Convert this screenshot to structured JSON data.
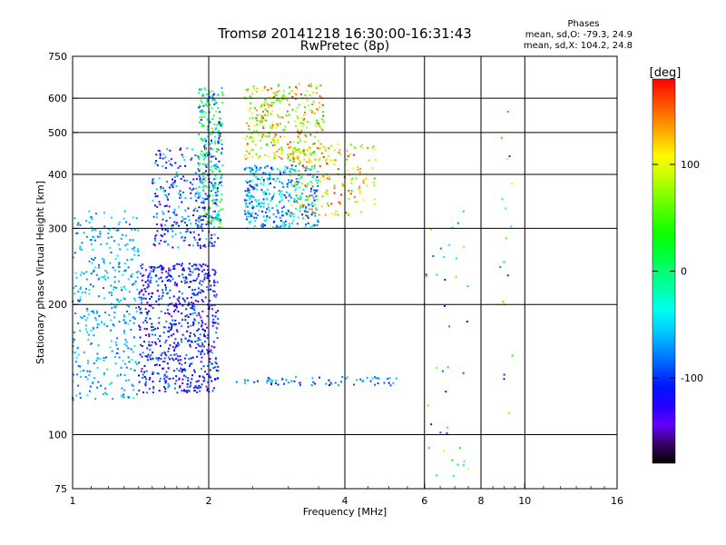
{
  "chart_data": {
    "type": "scatter",
    "title": "Tromsø 20141218 16:30:00-16:31:43",
    "subtitle": "RwPretec (8p)",
    "xlabel": "Frequency [MHz]",
    "ylabel": "Stationary phase Virtual Height [km]",
    "x_scale": "log",
    "y_scale": "log",
    "xlim": [
      1,
      16
    ],
    "ylim": [
      75,
      750
    ],
    "x_ticks": [
      1,
      2,
      4,
      6,
      8,
      10,
      16
    ],
    "x_tick_labels": [
      "1",
      "2",
      "4",
      "6",
      "8",
      "10",
      "16"
    ],
    "y_ticks": [
      75,
      100,
      200,
      300,
      400,
      500,
      600,
      750
    ],
    "y_tick_labels": [
      "75",
      "100",
      "200",
      "300",
      "400",
      "500",
      "600",
      "750"
    ],
    "grid": true,
    "stats": {
      "heading": "Phases",
      "line_o": "mean, sd,O: -79.3, 24.9",
      "line_x": "mean, sd,X: 104.2, 24.8"
    },
    "colorbar": {
      "label": "[deg]",
      "min": -180,
      "max": 180,
      "ticks": [
        100,
        0,
        -100
      ],
      "tick_labels": [
        "100",
        "0",
        "-100"
      ],
      "colormap": "rainbow"
    },
    "clusters": [
      {
        "x": [
          1.0,
          1.4
        ],
        "y": [
          120,
          330
        ],
        "phase": [
          -90,
          -40
        ],
        "n": 380
      },
      {
        "x": [
          1.4,
          2.1
        ],
        "y": [
          125,
          250
        ],
        "phase": [
          -150,
          -70
        ],
        "n": 700
      },
      {
        "x": [
          1.5,
          2.1
        ],
        "y": [
          270,
          460
        ],
        "phase": [
          -160,
          -40
        ],
        "n": 300
      },
      {
        "x": [
          1.9,
          2.15
        ],
        "y": [
          300,
          640
        ],
        "phase": [
          -130,
          80
        ],
        "n": 260
      },
      {
        "x": [
          2.4,
          3.5
        ],
        "y": [
          300,
          420
        ],
        "phase": [
          -110,
          -20
        ],
        "n": 380
      },
      {
        "x": [
          2.4,
          3.6
        ],
        "y": [
          430,
          650
        ],
        "phase": [
          30,
          170
        ],
        "n": 320
      },
      {
        "x": [
          3.0,
          4.7
        ],
        "y": [
          320,
          470
        ],
        "phase": [
          40,
          170
        ],
        "n": 200
      },
      {
        "x": [
          2.3,
          5.2
        ],
        "y": [
          130,
          136
        ],
        "phase": [
          -110,
          -50
        ],
        "n": 70
      },
      {
        "x": [
          6.0,
          7.5
        ],
        "y": [
          80,
          330
        ],
        "phase": [
          -140,
          130
        ],
        "n": 40
      },
      {
        "x": [
          8.8,
          9.4
        ],
        "y": [
          104,
          620
        ],
        "phase": [
          -160,
          120
        ],
        "n": 18
      }
    ]
  }
}
